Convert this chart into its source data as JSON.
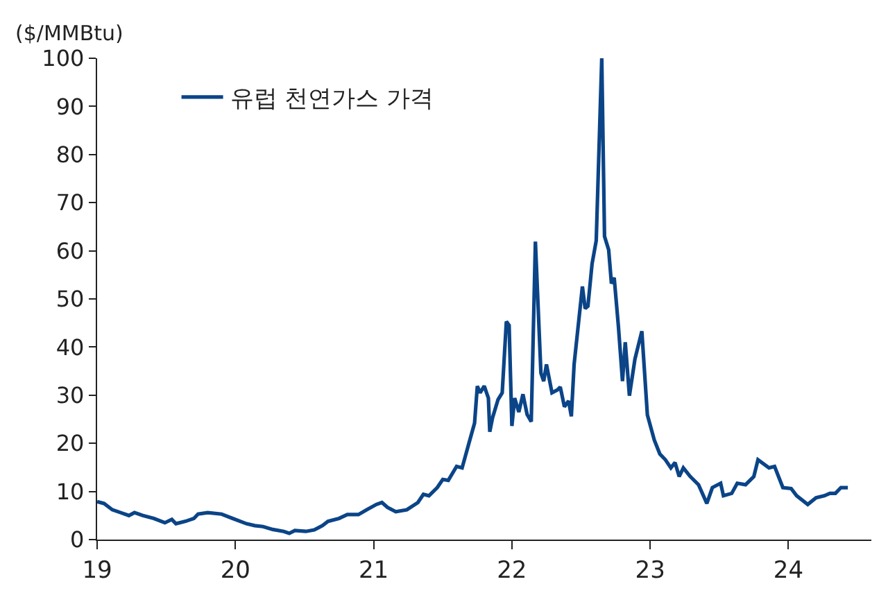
{
  "chart_data": {
    "type": "line",
    "ylabel": "($/MMBtu)",
    "xlim": [
      19,
      24.6
    ],
    "xticks": [
      19,
      20,
      21,
      22,
      23,
      24
    ],
    "ylim": [
      0,
      100
    ],
    "yticks": [
      0,
      10,
      20,
      30,
      40,
      50,
      60,
      70,
      80,
      90,
      100
    ],
    "legend": "top left",
    "marker": "none",
    "line_style": "solid",
    "series": [
      {
        "name": "유럽 천연가스 가격",
        "color": "#0b4487",
        "x": [
          19.0,
          19.05,
          19.11,
          19.17,
          19.23,
          19.27,
          19.33,
          19.41,
          19.49,
          19.54,
          19.57,
          19.64,
          19.7,
          19.73,
          19.8,
          19.9,
          19.98,
          20.08,
          20.14,
          20.2,
          20.27,
          20.35,
          20.39,
          20.43,
          20.51,
          20.57,
          20.63,
          20.67,
          20.75,
          20.81,
          20.89,
          20.95,
          21.02,
          21.06,
          21.1,
          21.16,
          21.24,
          21.32,
          21.36,
          21.4,
          21.46,
          21.5,
          21.54,
          21.6,
          21.64,
          21.69,
          21.73,
          21.75,
          21.77,
          21.8,
          21.83,
          21.84,
          21.86,
          21.9,
          21.93,
          21.96,
          21.98,
          22.0,
          22.02,
          22.05,
          22.08,
          22.11,
          22.14,
          22.17,
          22.21,
          22.23,
          22.25,
          22.29,
          22.33,
          22.35,
          22.38,
          22.41,
          22.43,
          22.45,
          22.51,
          22.53,
          22.55,
          22.58,
          22.61,
          22.65,
          22.67,
          22.7,
          22.72,
          22.74,
          22.77,
          22.8,
          22.82,
          22.85,
          22.89,
          22.94,
          22.98,
          23.03,
          23.07,
          23.11,
          23.15,
          23.18,
          23.21,
          23.24,
          23.29,
          23.35,
          23.41,
          23.45,
          23.51,
          23.53,
          23.59,
          23.63,
          23.69,
          23.75,
          23.78,
          23.86,
          23.9,
          23.96,
          24.02,
          24.06,
          24.14,
          24.2,
          24.26,
          24.3,
          24.34,
          24.38,
          24.43
        ],
        "values": [
          7.9,
          7.5,
          6.2,
          5.6,
          5.0,
          5.6,
          5.0,
          4.4,
          3.5,
          4.2,
          3.3,
          3.8,
          4.4,
          5.3,
          5.6,
          5.3,
          4.4,
          3.3,
          2.9,
          2.7,
          2.1,
          1.7,
          1.3,
          1.9,
          1.7,
          2.0,
          2.9,
          3.8,
          4.4,
          5.2,
          5.2,
          6.2,
          7.3,
          7.7,
          6.7,
          5.8,
          6.2,
          7.7,
          9.4,
          9.1,
          10.8,
          12.5,
          12.3,
          15.2,
          14.9,
          20.1,
          24.2,
          31.9,
          30.5,
          31.9,
          29.4,
          22.4,
          25.3,
          29.1,
          30.5,
          45.3,
          44.5,
          23.6,
          29.4,
          26.5,
          30.2,
          26.0,
          24.5,
          61.9,
          34.6,
          32.9,
          36.4,
          30.5,
          31.1,
          31.7,
          27.6,
          28.8,
          25.6,
          36.4,
          52.6,
          48.0,
          48.5,
          57.3,
          62.1,
          100,
          63.0,
          60.2,
          53.2,
          54.4,
          44.5,
          32.9,
          41.0,
          29.9,
          37.5,
          43.3,
          25.9,
          20.7,
          17.8,
          16.6,
          14.9,
          16.0,
          13.1,
          14.9,
          13.1,
          11.4,
          7.5,
          10.8,
          11.7,
          9.1,
          9.6,
          11.7,
          11.4,
          13.1,
          16.6,
          14.9,
          15.2,
          10.8,
          10.6,
          9.1,
          7.3,
          8.7,
          9.1,
          9.6,
          9.6,
          10.8,
          10.8
        ]
      }
    ]
  }
}
